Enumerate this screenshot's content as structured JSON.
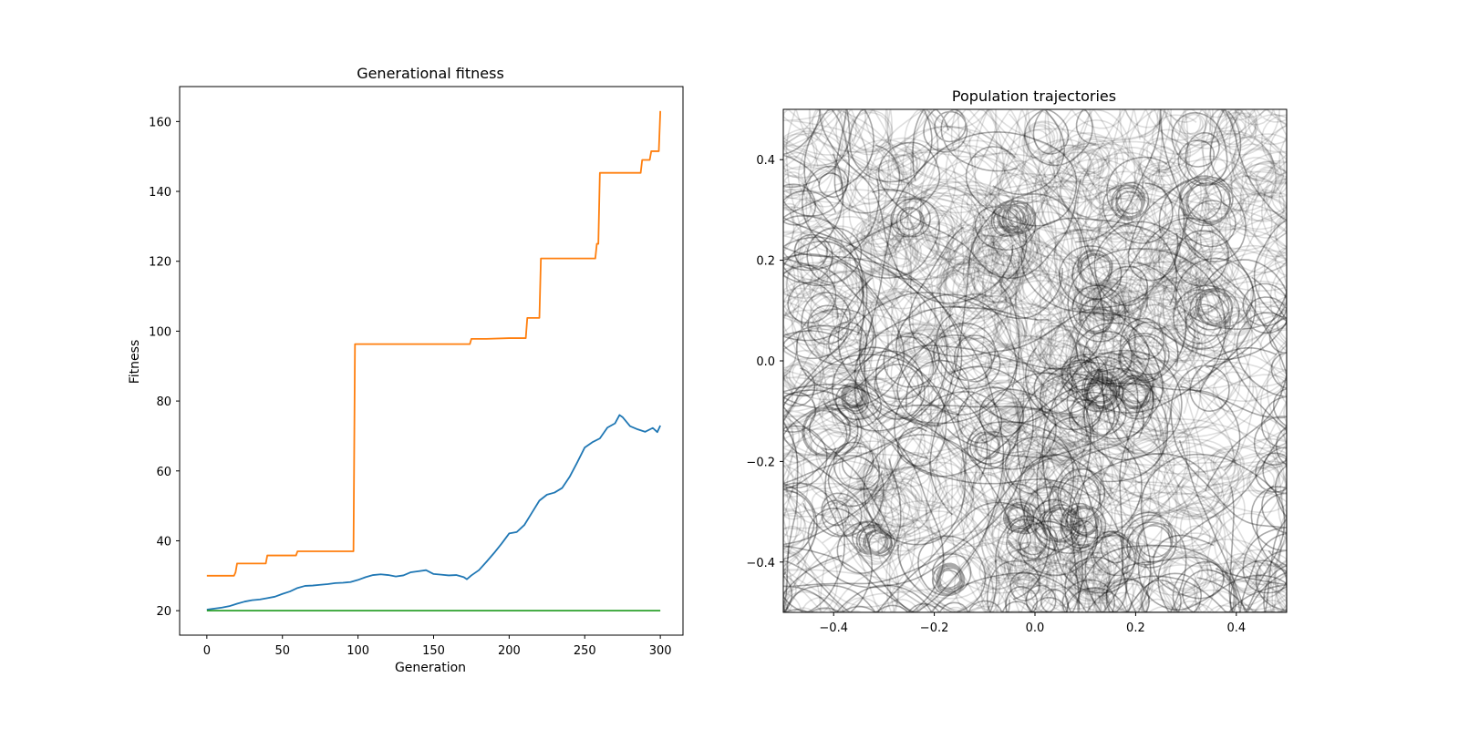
{
  "chart_data": [
    {
      "type": "line",
      "title": "Generational fitness",
      "xlabel": "Generation",
      "ylabel": "Fitness",
      "xlim": [
        -18,
        315
      ],
      "ylim": [
        13,
        170
      ],
      "xticks": [
        0,
        50,
        100,
        150,
        200,
        250,
        300
      ],
      "yticks": [
        20,
        40,
        60,
        80,
        100,
        120,
        140,
        160
      ],
      "grid": false,
      "series": [
        {
          "color": "#ff7f0e",
          "points": [
            [
              0,
              30
            ],
            [
              18,
              30
            ],
            [
              19,
              31
            ],
            [
              20,
              33.5
            ],
            [
              39,
              33.5
            ],
            [
              40,
              35.8
            ],
            [
              59,
              35.8
            ],
            [
              60,
              37
            ],
            [
              97,
              37
            ],
            [
              98,
              96.3
            ],
            [
              174,
              96.3
            ],
            [
              175,
              97.8
            ],
            [
              185,
              97.8
            ],
            [
              200,
              98
            ],
            [
              211,
              98
            ],
            [
              212,
              103.8
            ],
            [
              220,
              103.8
            ],
            [
              221,
              120.8
            ],
            [
              257,
              120.8
            ],
            [
              258,
              125
            ],
            [
              259,
              125
            ],
            [
              260,
              145.3
            ],
            [
              287,
              145.3
            ],
            [
              288,
              149
            ],
            [
              293,
              149
            ],
            [
              294,
              151.5
            ],
            [
              299,
              151.5
            ],
            [
              300,
              163
            ]
          ]
        },
        {
          "color": "#1f77b4",
          "points": [
            [
              0,
              20.3
            ],
            [
              5,
              20.6
            ],
            [
              10,
              20.9
            ],
            [
              15,
              21.3
            ],
            [
              20,
              22
            ],
            [
              25,
              22.6
            ],
            [
              30,
              23
            ],
            [
              35,
              23.2
            ],
            [
              40,
              23.6
            ],
            [
              45,
              24
            ],
            [
              50,
              24.8
            ],
            [
              55,
              25.5
            ],
            [
              60,
              26.5
            ],
            [
              65,
              27.1
            ],
            [
              70,
              27.2
            ],
            [
              75,
              27.4
            ],
            [
              80,
              27.6
            ],
            [
              85,
              27.9
            ],
            [
              90,
              28
            ],
            [
              95,
              28.2
            ],
            [
              100,
              28.8
            ],
            [
              105,
              29.6
            ],
            [
              110,
              30.2
            ],
            [
              115,
              30.4
            ],
            [
              120,
              30.2
            ],
            [
              125,
              29.8
            ],
            [
              130,
              30.1
            ],
            [
              135,
              31
            ],
            [
              140,
              31.3
            ],
            [
              145,
              31.6
            ],
            [
              150,
              30.5
            ],
            [
              155,
              30.3
            ],
            [
              160,
              30.1
            ],
            [
              165,
              30.2
            ],
            [
              170,
              29.6
            ],
            [
              172,
              29
            ],
            [
              175,
              30.1
            ],
            [
              180,
              31.6
            ],
            [
              185,
              34
            ],
            [
              190,
              36.5
            ],
            [
              195,
              39.2
            ],
            [
              200,
              42.1
            ],
            [
              205,
              42.5
            ],
            [
              210,
              44.5
            ],
            [
              215,
              48
            ],
            [
              220,
              51.5
            ],
            [
              225,
              53.2
            ],
            [
              230,
              53.8
            ],
            [
              235,
              55.1
            ],
            [
              240,
              58.3
            ],
            [
              245,
              62.4
            ],
            [
              250,
              66.7
            ],
            [
              255,
              68.2
            ],
            [
              260,
              69.3
            ],
            [
              265,
              72.4
            ],
            [
              270,
              73.6
            ],
            [
              273,
              76
            ],
            [
              275,
              75.4
            ],
            [
              280,
              72.8
            ],
            [
              285,
              71.9
            ],
            [
              290,
              71.2
            ],
            [
              295,
              72.3
            ],
            [
              298,
              71.1
            ],
            [
              300,
              73
            ]
          ]
        },
        {
          "color": "#2ca02c",
          "points": [
            [
              0,
              20
            ],
            [
              300,
              20
            ]
          ]
        }
      ]
    },
    {
      "type": "line",
      "title": "Population trajectories",
      "xlabel": "",
      "ylabel": "",
      "xlim": [
        -0.5,
        0.5
      ],
      "ylim": [
        -0.5,
        0.5
      ],
      "xticks": [
        "−0.4",
        "−0.2",
        "0.0",
        "0.2",
        "0.4"
      ],
      "yticks": [
        "−0.4",
        "−0.2",
        "0.0",
        "0.2",
        "0.4"
      ],
      "grid": false,
      "line_color": "#000000",
      "line_alpha": 0.13,
      "trajectory_count": 320
    }
  ]
}
